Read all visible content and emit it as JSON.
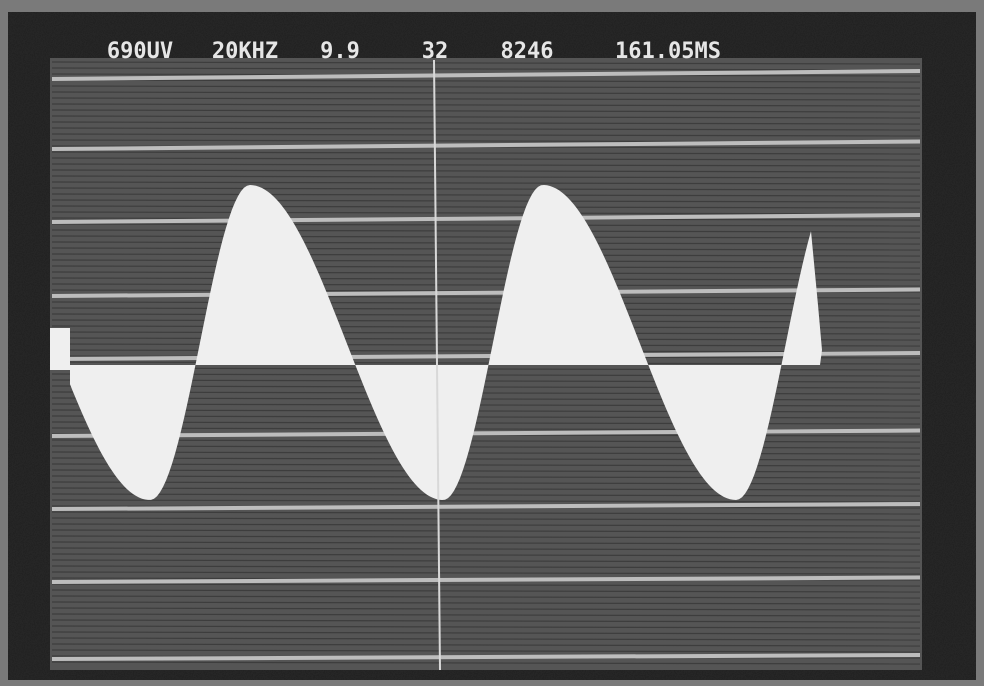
{
  "readout": [
    "690UV",
    "20KHZ",
    "9.9",
    "32",
    "8246",
    "161.05MS"
  ]
}
